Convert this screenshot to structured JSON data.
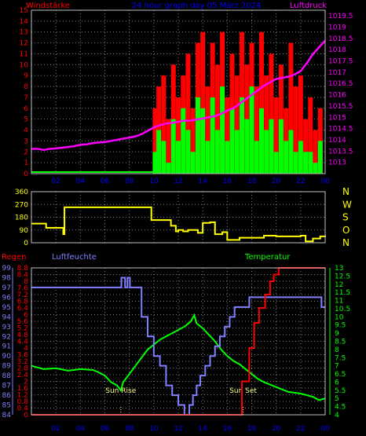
{
  "header": {
    "left": "Windstärke",
    "center": "24 hour graph day 05 März 2024",
    "right": "Luftdruck"
  },
  "panel3_labels": {
    "rain": "Regen",
    "humidity": "Luftfeuchte",
    "temperature": "Temperatur"
  },
  "colors": {
    "wind": "#ff0000",
    "gust": "#00ff00",
    "pressure": "#ff00ff",
    "direction": "#ffff00",
    "humidity": "#8080ff",
    "rain": "#ff0000",
    "temperature": "#00ff00",
    "grid": "#808080",
    "bg": "#000000"
  },
  "chart_data": [
    {
      "type": "bar",
      "name_left": "Windstärke",
      "name_right": "Luftdruck",
      "x_ticks": [
        "02",
        "04",
        "06",
        "08",
        "10",
        "12",
        "14",
        "16",
        "18",
        "20",
        "22",
        "00"
      ],
      "left_ticks": [
        "0",
        "1",
        "2",
        "3",
        "4",
        "5",
        "6",
        "7",
        "8",
        "9",
        "10",
        "11",
        "12",
        "13",
        "14",
        "15"
      ],
      "right_ticks": [
        "1013",
        "1013.5",
        "1014",
        "1014.5",
        "1015",
        "1015.5",
        "1016",
        "1016.5",
        "1017",
        "1017.5",
        "1018",
        "1018.5",
        "1019",
        "1019.5"
      ],
      "ylim_left": [
        0,
        15
      ],
      "ylim_right": [
        1012.5,
        1019.75
      ],
      "pressure": {
        "x": [
          0,
          0.5,
          1,
          1.5,
          2,
          2.5,
          3,
          3.5,
          4,
          4.5,
          5,
          5.5,
          6,
          6.5,
          7,
          7.5,
          8,
          8.5,
          9,
          9.5,
          10,
          10.5,
          11,
          11.5,
          12,
          12.5,
          13,
          13.5,
          14,
          14.5,
          15,
          15.5,
          16,
          16.5,
          17,
          17.5,
          18,
          18.5,
          19,
          19.5,
          20,
          20.5,
          21,
          21.5,
          22,
          22.5,
          23,
          23.5,
          24
        ],
        "y": [
          1013.6,
          1013.6,
          1013.55,
          1013.6,
          1013.62,
          1013.65,
          1013.68,
          1013.72,
          1013.78,
          1013.8,
          1013.85,
          1013.88,
          1013.9,
          1013.95,
          1014,
          1014.05,
          1014.1,
          1014.15,
          1014.25,
          1014.4,
          1014.55,
          1014.65,
          1014.72,
          1014.75,
          1014.8,
          1014.85,
          1014.85,
          1014.9,
          1014.95,
          1015,
          1015.05,
          1015.15,
          1015.3,
          1015.4,
          1015.6,
          1015.8,
          1016,
          1016.2,
          1016.4,
          1016.55,
          1016.7,
          1016.75,
          1016.8,
          1016.9,
          1017.05,
          1017.4,
          1017.8,
          1018.1,
          1018.4
        ]
      },
      "wind": {
        "x": [
          10.1,
          10.4,
          10.8,
          11.2,
          11.6,
          12.0,
          12.4,
          12.8,
          13.2,
          13.6,
          14.0,
          14.4,
          14.8,
          15.2,
          15.6,
          16.0,
          16.4,
          16.8,
          17.2,
          17.6,
          18.0,
          18.4,
          18.8,
          19.2,
          19.6,
          20.0,
          20.4,
          20.8,
          21.2,
          21.6,
          22.0,
          22.4,
          22.8,
          23.2,
          23.6
        ],
        "y": [
          6,
          8,
          9,
          5,
          10,
          7,
          9,
          11,
          6,
          12,
          13,
          8,
          12,
          10,
          13,
          7,
          11,
          9,
          13,
          10,
          12,
          8,
          13,
          9,
          11,
          7,
          10,
          6,
          12,
          8,
          9,
          5,
          7,
          4,
          6
        ]
      },
      "gust": {
        "x": [
          10.1,
          10.4,
          10.8,
          11.2,
          11.6,
          12.0,
          12.4,
          12.8,
          13.2,
          13.6,
          14.0,
          14.4,
          14.8,
          15.2,
          15.6,
          16.0,
          16.4,
          16.8,
          17.2,
          17.6,
          18.0,
          18.4,
          18.8,
          19.2,
          19.6,
          20.0,
          20.4,
          20.8,
          21.2,
          21.6,
          22.0,
          22.4,
          22.8,
          23.2,
          23.6
        ],
        "y": [
          2,
          4,
          3,
          1,
          5,
          3,
          6,
          4,
          2,
          7,
          6,
          3,
          7,
          4,
          8,
          3,
          6,
          4,
          7,
          5,
          8,
          3,
          6,
          4,
          5,
          2,
          5,
          3,
          4,
          2,
          3,
          2,
          2,
          1,
          3
        ]
      }
    },
    {
      "type": "line",
      "name_right": [
        "N",
        "W",
        "S",
        "O",
        "N"
      ],
      "left_ticks": [
        "0",
        "90",
        "180",
        "270",
        "360"
      ],
      "ylim": [
        0,
        360
      ],
      "x": [
        0,
        1.2,
        2.6,
        2.7,
        3.0,
        4.0,
        5.5,
        6.5,
        8.0,
        9.0,
        9.4,
        9.8,
        10.6,
        11.0,
        11.4,
        11.8,
        12.0,
        12.4,
        12.8,
        13.6,
        14.0,
        14.6,
        15.0,
        15.6,
        16.0,
        17.0,
        18.5,
        19.0,
        20.0,
        21.0,
        22.0,
        22.4,
        23.0,
        23.6,
        24.0
      ],
      "y": [
        135,
        105,
        60,
        250,
        250,
        250,
        250,
        250,
        250,
        250,
        250,
        160,
        160,
        160,
        120,
        80,
        90,
        80,
        90,
        70,
        140,
        145,
        60,
        75,
        20,
        35,
        35,
        50,
        45,
        45,
        50,
        10,
        30,
        45,
        40
      ]
    },
    {
      "type": "line",
      "name_left": [
        "Regen",
        "Luftfeuchte"
      ],
      "name_right": "Temperatur",
      "x_ticks": [
        "02",
        "04",
        "06",
        "08",
        "10",
        "12",
        "14",
        "16",
        "18",
        "20",
        "22",
        "00"
      ],
      "humidity_ticks": [
        "84",
        "85",
        "86",
        "87",
        "88",
        "89",
        "90",
        "91",
        "92",
        "93",
        "94",
        "95",
        "96",
        "97",
        "98",
        "99"
      ],
      "rain_ticks": [
        "0",
        "0.4",
        "0.8",
        "1.2",
        "1.6",
        "2",
        "2.4",
        "2.8",
        "3.2",
        "3.6",
        "4",
        "4.4",
        "4.8",
        "5.2",
        "5.6",
        "6",
        "6.4",
        "6.8",
        "7.2",
        "7.6",
        "8",
        "8.4",
        "8.8"
      ],
      "temperature_ticks": [
        "4",
        "4.5",
        "5",
        "5.5",
        "6",
        "6.5",
        "7",
        "7.5",
        "8",
        "8.5",
        "9",
        "9.5",
        "10",
        "10.5",
        "11",
        "11.5",
        "12",
        "12.5",
        "13"
      ],
      "annotations": [
        "Sun Rise",
        "Sun Set"
      ],
      "humidity": {
        "x": [
          0,
          7.3,
          7.35,
          7.6,
          7.65,
          7.8,
          7.85,
          8.0,
          8.05,
          8.4,
          8.5,
          9.0,
          9.5,
          10.0,
          10.5,
          11.0,
          11.5,
          12.0,
          12.5,
          12.9,
          13.2,
          13.5,
          13.8,
          14.2,
          14.6,
          15.0,
          15.4,
          15.8,
          16.2,
          16.6,
          17.2,
          17.8,
          18.4,
          19.0,
          23.6,
          23.7,
          24.0
        ],
        "y": [
          97,
          97,
          98,
          98,
          97,
          97,
          98,
          98,
          97,
          97,
          97,
          94,
          92,
          90,
          89,
          87,
          86,
          85,
          84,
          85,
          86,
          87,
          88,
          89,
          90,
          91,
          92,
          93,
          94,
          95,
          95,
          96,
          96,
          96,
          96,
          95,
          95
        ]
      },
      "temperature": {
        "x": [
          0,
          1,
          2,
          3,
          4,
          5,
          5.5,
          6,
          6.5,
          7,
          7.3,
          7.5,
          8,
          8.5,
          9,
          9.5,
          10,
          10.5,
          11,
          11.5,
          12,
          12.5,
          13,
          13.3,
          13.5,
          14,
          14.5,
          15,
          15.5,
          16,
          16.5,
          17,
          17.5,
          18,
          18.5,
          19,
          20,
          21,
          22,
          22.5,
          23,
          23.5,
          24
        ],
        "y": [
          7.0,
          6.8,
          6.85,
          6.7,
          6.8,
          6.75,
          6.6,
          6.4,
          6.0,
          5.8,
          5.5,
          6.0,
          6.5,
          7.0,
          7.5,
          8.0,
          8.3,
          8.6,
          8.8,
          9.0,
          9.2,
          9.4,
          9.7,
          10.1,
          9.6,
          9.3,
          8.9,
          8.5,
          8.0,
          7.6,
          7.3,
          7.1,
          6.8,
          6.5,
          6.2,
          6.0,
          5.7,
          5.4,
          5.3,
          5.2,
          5.1,
          4.9,
          5.0
        ]
      },
      "rain": {
        "x": [
          0,
          16.6,
          17.2,
          17.8,
          18.2,
          18.6,
          19.1,
          19.5,
          19.8,
          20.2,
          24.0
        ],
        "y": [
          0,
          0,
          2,
          4,
          5.5,
          6.4,
          7.2,
          8,
          8.4,
          8.8,
          8.8
        ]
      }
    }
  ]
}
